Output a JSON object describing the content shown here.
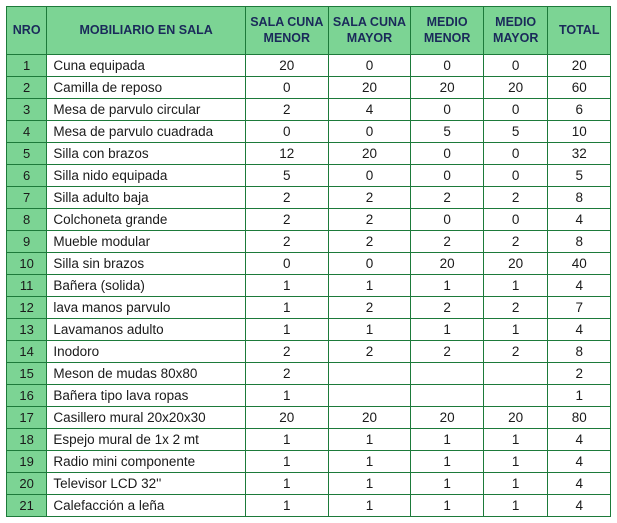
{
  "table": {
    "columns": [
      {
        "key": "nro",
        "label": "NRO",
        "class": "col-nro"
      },
      {
        "key": "mob",
        "label": "MOBILIARIO EN SALA",
        "class": "col-mob"
      },
      {
        "key": "scme",
        "label": "SALA CUNA\nMENOR",
        "class": "col-scme"
      },
      {
        "key": "scma",
        "label": "SALA CUNA\nMAYOR",
        "class": "col-scma"
      },
      {
        "key": "mme",
        "label": "MEDIO\nMENOR",
        "class": "col-mme"
      },
      {
        "key": "mma",
        "label": "MEDIO\nMAYOR",
        "class": "col-mma"
      },
      {
        "key": "tot",
        "label": "TOTAL",
        "class": "col-tot"
      }
    ],
    "rows": [
      {
        "nro": "1",
        "mob": "Cuna equipada",
        "scme": "20",
        "scma": "0",
        "mme": "0",
        "mma": "0",
        "tot": "20"
      },
      {
        "nro": "2",
        "mob": "Camilla de reposo",
        "scme": "0",
        "scma": "20",
        "mme": "20",
        "mma": "20",
        "tot": "60"
      },
      {
        "nro": "3",
        "mob": "Mesa de parvulo circular",
        "scme": "2",
        "scma": "4",
        "mme": "0",
        "mma": "0",
        "tot": "6"
      },
      {
        "nro": "4",
        "mob": "Mesa de parvulo cuadrada",
        "scme": "0",
        "scma": "0",
        "mme": "5",
        "mma": "5",
        "tot": "10"
      },
      {
        "nro": "5",
        "mob": "Silla con brazos",
        "scme": "12",
        "scma": "20",
        "mme": "0",
        "mma": "0",
        "tot": "32"
      },
      {
        "nro": "6",
        "mob": "Silla nido equipada",
        "scme": "5",
        "scma": "0",
        "mme": "0",
        "mma": "0",
        "tot": "5"
      },
      {
        "nro": "7",
        "mob": "Silla adulto baja",
        "scme": "2",
        "scma": "2",
        "mme": "2",
        "mma": "2",
        "tot": "8"
      },
      {
        "nro": "8",
        "mob": "Colchoneta grande",
        "scme": "2",
        "scma": "2",
        "mme": "0",
        "mma": "0",
        "tot": "4"
      },
      {
        "nro": "9",
        "mob": "Mueble modular",
        "scme": "2",
        "scma": "2",
        "mme": "2",
        "mma": "2",
        "tot": "8"
      },
      {
        "nro": "10",
        "mob": "Silla sin brazos",
        "scme": "0",
        "scma": "0",
        "mme": "20",
        "mma": "20",
        "tot": "40"
      },
      {
        "nro": "11",
        "mob": "Bañera (solida)",
        "scme": "1",
        "scma": "1",
        "mme": "1",
        "mma": "1",
        "tot": "4"
      },
      {
        "nro": "12",
        "mob": "lava manos parvulo",
        "scme": "1",
        "scma": "2",
        "mme": "2",
        "mma": "2",
        "tot": "7"
      },
      {
        "nro": "13",
        "mob": "Lavamanos adulto",
        "scme": "1",
        "scma": "1",
        "mme": "1",
        "mma": "1",
        "tot": "4"
      },
      {
        "nro": "14",
        "mob": "Inodoro",
        "scme": "2",
        "scma": "2",
        "mme": "2",
        "mma": "2",
        "tot": "8"
      },
      {
        "nro": "15",
        "mob": "Meson de mudas 80x80",
        "scme": "2",
        "scma": "",
        "mme": "",
        "mma": "",
        "tot": "2"
      },
      {
        "nro": "16",
        "mob": "Bañera tipo lava ropas",
        "scme": "1",
        "scma": "",
        "mme": "",
        "mma": "",
        "tot": "1"
      },
      {
        "nro": "17",
        "mob": "Casillero mural 20x20x30",
        "scme": "20",
        "scma": "20",
        "mme": "20",
        "mma": "20",
        "tot": "80"
      },
      {
        "nro": "18",
        "mob": "Espejo mural de 1x 2 mt",
        "scme": "1",
        "scma": "1",
        "mme": "1",
        "mma": "1",
        "tot": "4"
      },
      {
        "nro": "19",
        "mob": "Radio mini componente",
        "scme": "1",
        "scma": "1",
        "mme": "1",
        "mma": "1",
        "tot": "4"
      },
      {
        "nro": "20",
        "mob": "Televisor LCD 32''",
        "scme": "1",
        "scma": "1",
        "mme": "1",
        "mma": "1",
        "tot": "4"
      },
      {
        "nro": "21",
        "mob": "Calefacción a leña",
        "scme": "1",
        "scma": "1",
        "mme": "1",
        "mma": "1",
        "tot": "4"
      }
    ],
    "colors": {
      "header_bg": "#7cd494",
      "header_text": "#1a2a5a",
      "nro_bg": "#7cd494",
      "cell_bg": "#ffffff",
      "border": "#1d7a3a",
      "body_text": "#1a1a1a"
    },
    "fonts": {
      "header_size_pt": 9.5,
      "body_size_pt": 10
    }
  }
}
